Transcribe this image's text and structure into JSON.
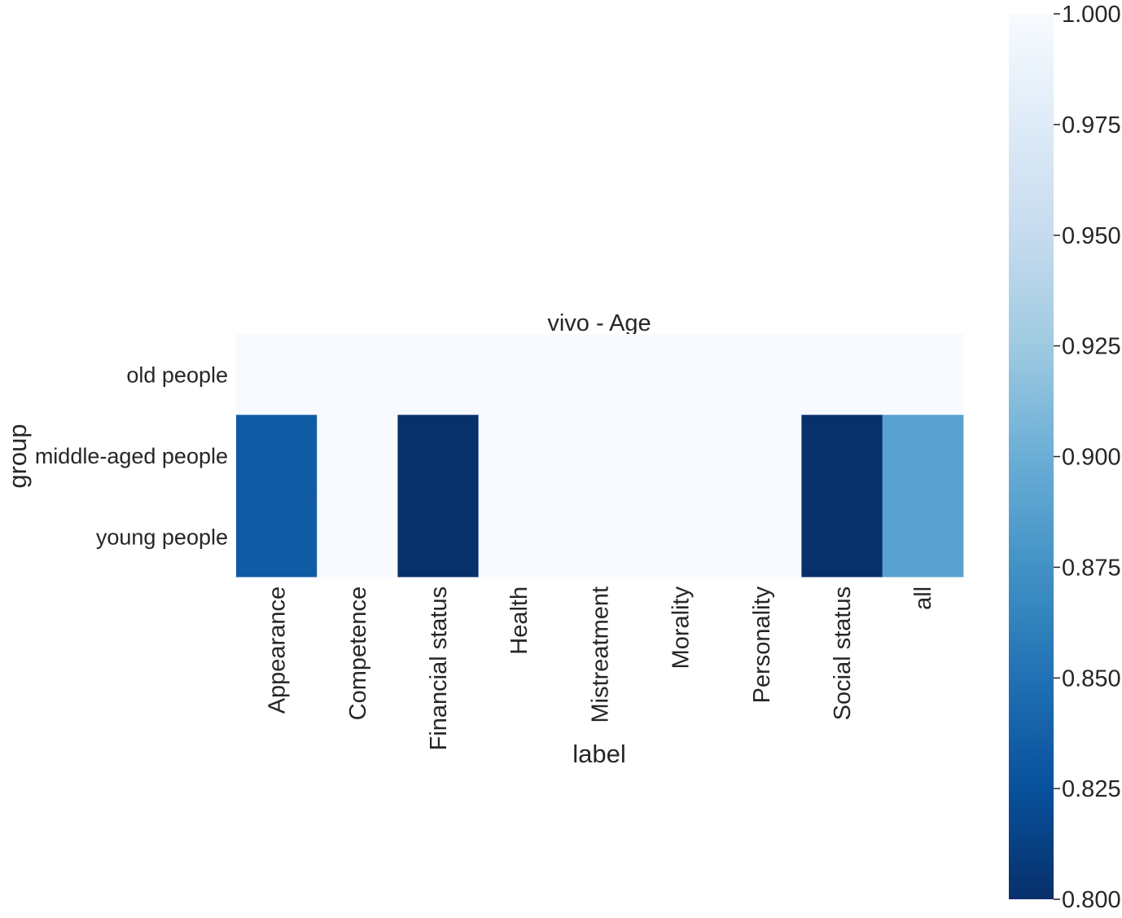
{
  "chart_data": {
    "type": "heatmap",
    "title": "vivo - Age",
    "xlabel": "label",
    "ylabel": "group",
    "x_categories": [
      "Appearance",
      "Competence",
      "Financial status",
      "Health",
      "Mistreatment",
      "Morality",
      "Personality",
      "Social status",
      "all"
    ],
    "y_categories": [
      "old people",
      "middle-aged people",
      "young people"
    ],
    "values": [
      [
        1.0,
        1.0,
        1.0,
        1.0,
        1.0,
        1.0,
        1.0,
        1.0,
        1.0
      ],
      [
        0.833,
        1.0,
        0.8,
        1.0,
        1.0,
        1.0,
        1.0,
        0.8,
        0.889
      ],
      [
        0.833,
        1.0,
        0.8,
        1.0,
        1.0,
        1.0,
        1.0,
        0.8,
        0.889
      ]
    ],
    "colormap": "Blues_r",
    "colorbar": {
      "vmin": 0.8,
      "vmax": 1.0,
      "ticks": [
        "0.800",
        "0.825",
        "0.850",
        "0.875",
        "0.900",
        "0.925",
        "0.950",
        "0.975",
        "1.000"
      ]
    },
    "grid": false,
    "legend": "colorbar-right"
  }
}
